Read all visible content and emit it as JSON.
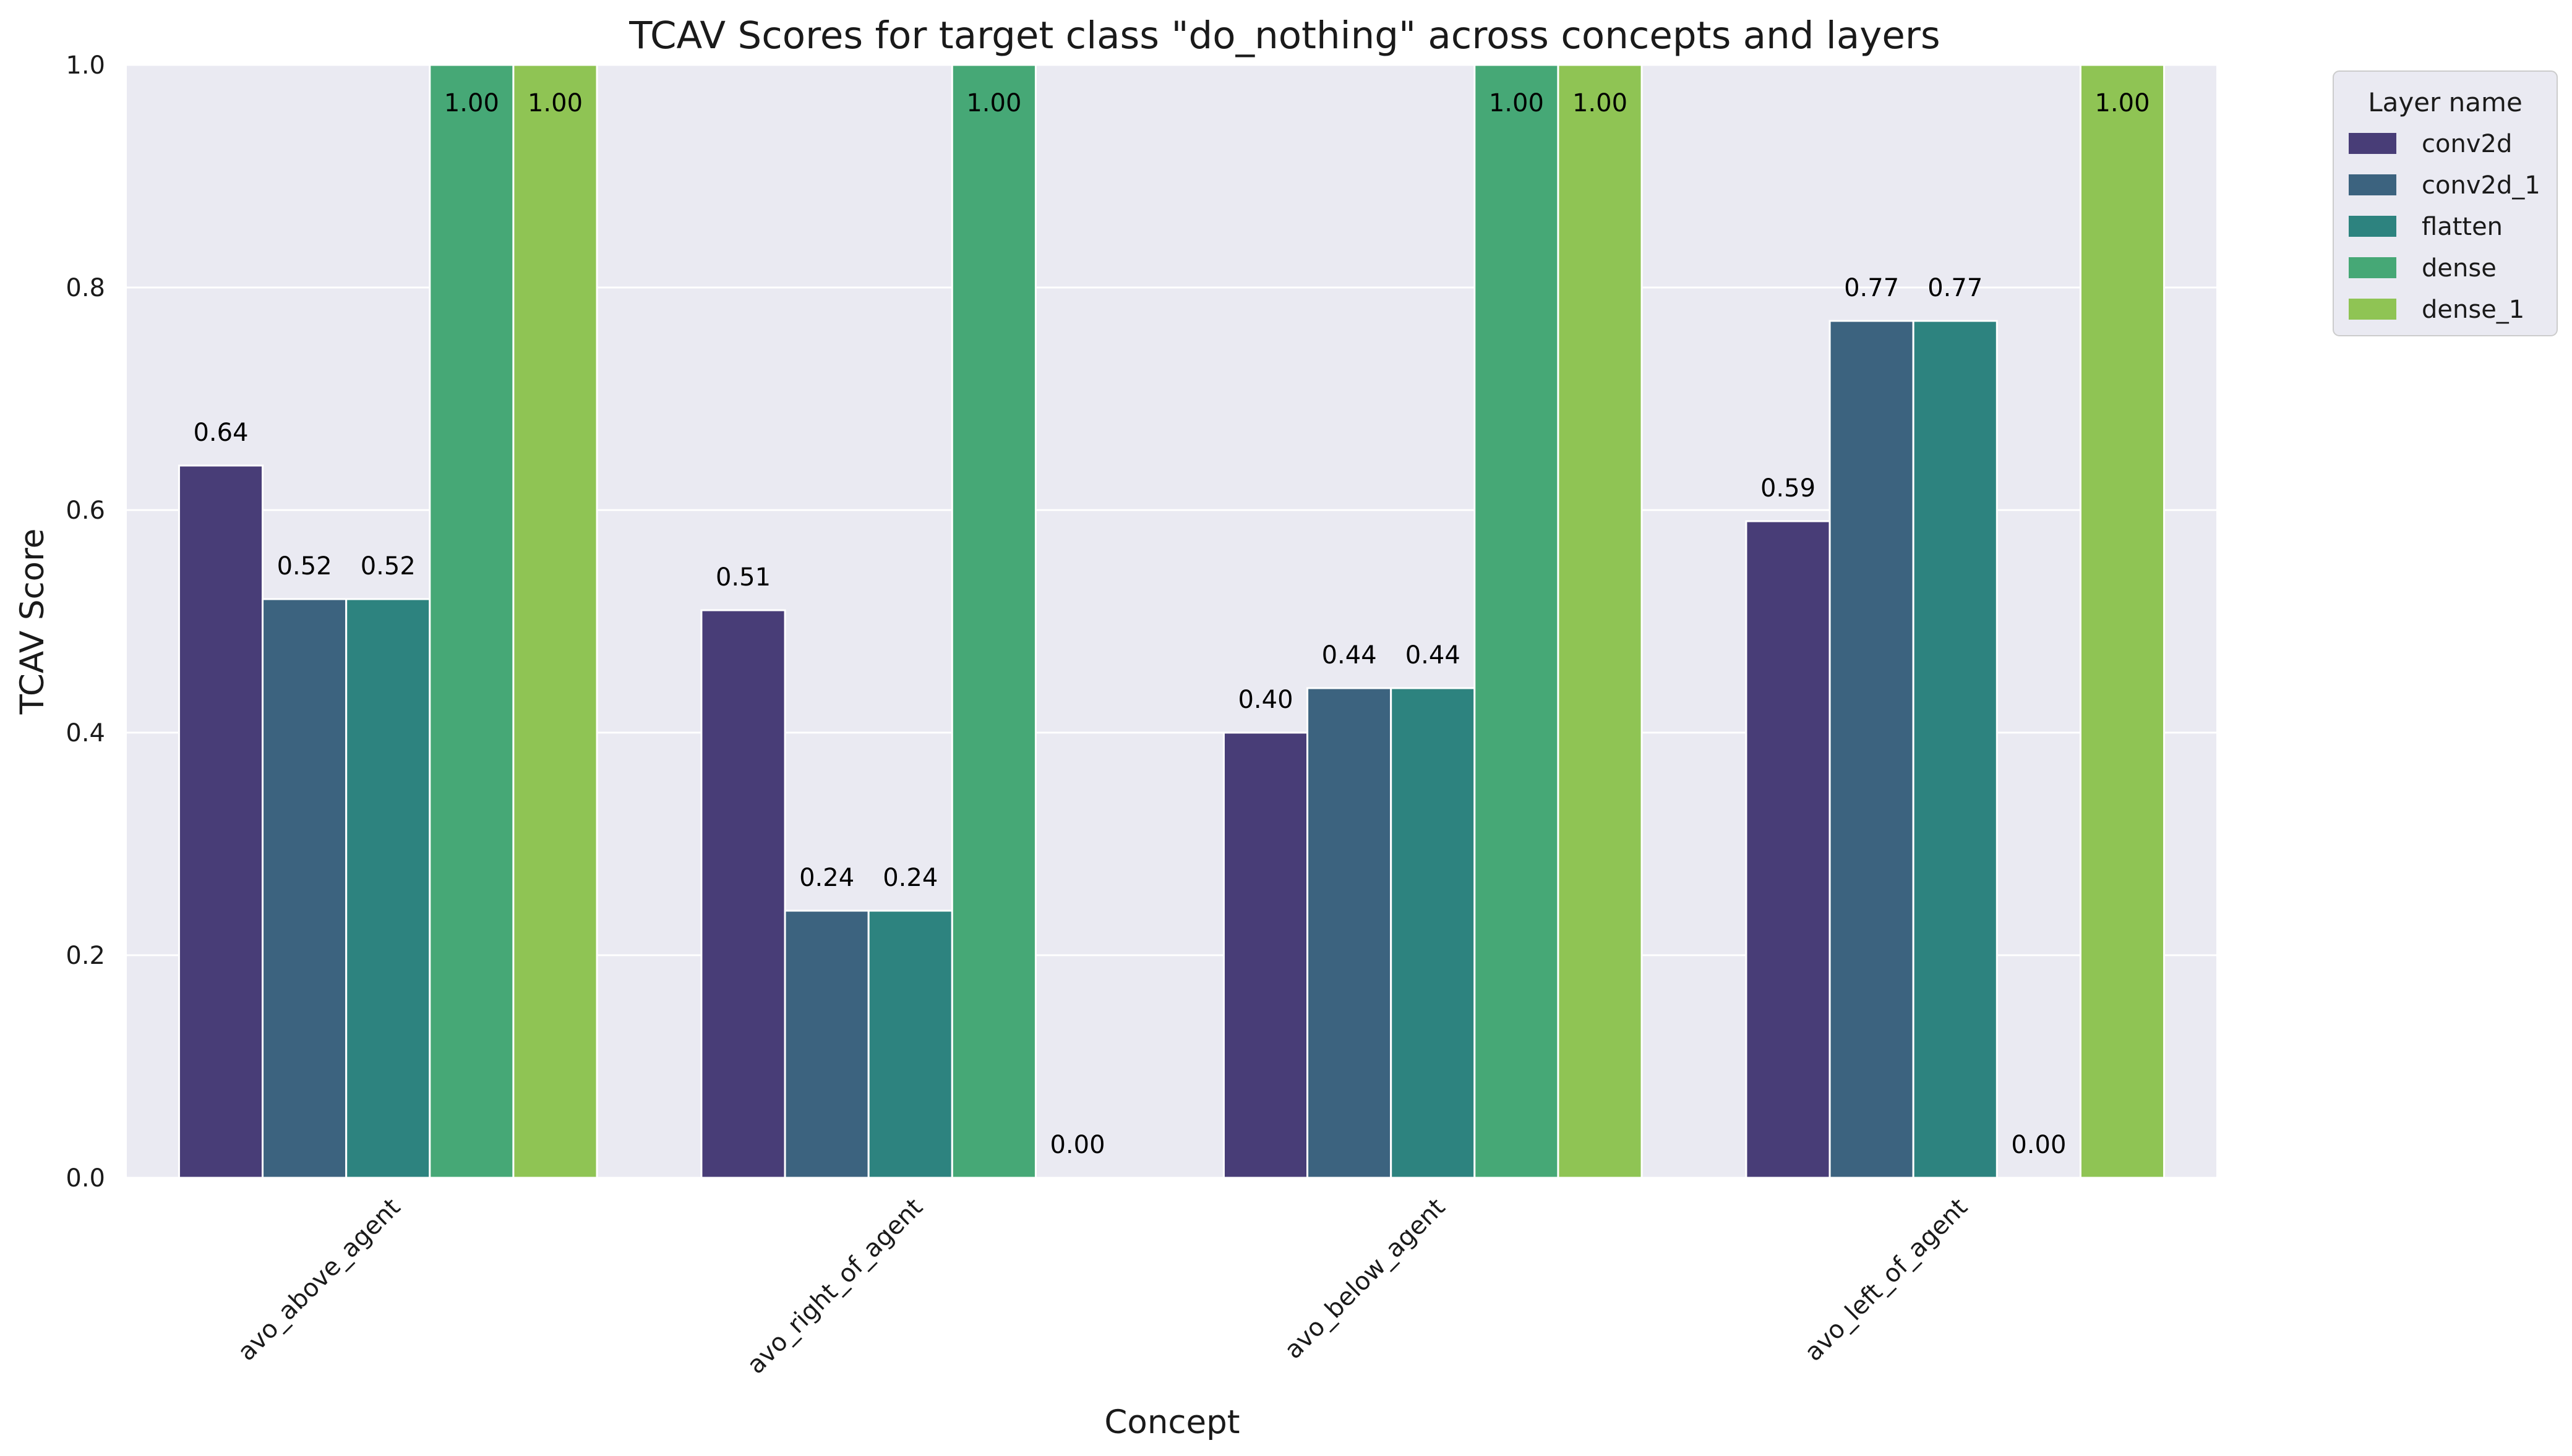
{
  "chart_data": {
    "type": "bar",
    "title": "TCAV Scores for target class \"do_nothing\" across concepts and layers",
    "xlabel": "Concept",
    "ylabel": "TCAV Score",
    "ylim": [
      0,
      1.0
    ],
    "yticks": [
      "0.0",
      "0.2",
      "0.4",
      "0.6",
      "0.8",
      "1.0"
    ],
    "grid": true,
    "legend_position": "outside-top-right",
    "legend_title": "Layer name",
    "categories": [
      "avo_above_agent",
      "avo_right_of_agent",
      "avo_below_agent",
      "avo_left_of_agent"
    ],
    "series": [
      {
        "name": "conv2d",
        "color": "#483d77",
        "values": [
          0.64,
          0.51,
          0.4,
          0.59
        ],
        "labels": [
          "0.64",
          "0.51",
          "0.40",
          "0.59"
        ]
      },
      {
        "name": "conv2d_1",
        "color": "#3c637f",
        "values": [
          0.52,
          0.24,
          0.44,
          0.77
        ],
        "labels": [
          "0.52",
          "0.24",
          "0.44",
          "0.77"
        ]
      },
      {
        "name": "flatten",
        "color": "#2d837f",
        "values": [
          0.52,
          0.24,
          0.44,
          0.77
        ],
        "labels": [
          "0.52",
          "0.24",
          "0.44",
          "0.77"
        ]
      },
      {
        "name": "dense",
        "color": "#46a876",
        "values": [
          1.0,
          1.0,
          1.0,
          0.0
        ],
        "labels": [
          "1.00",
          "1.00",
          "1.00",
          "0.00"
        ]
      },
      {
        "name": "dense_1",
        "color": "#8fc454",
        "values": [
          1.0,
          0.0,
          1.0,
          1.0
        ],
        "labels": [
          "1.00",
          "0.00",
          "1.00",
          "1.00"
        ]
      }
    ]
  }
}
